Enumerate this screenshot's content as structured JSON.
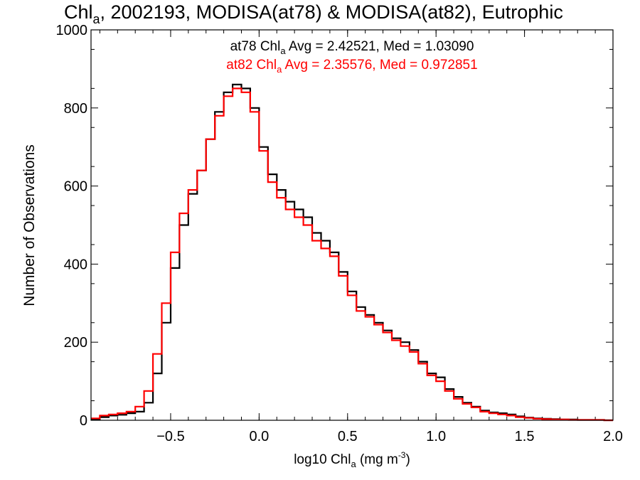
{
  "chart_data": {
    "type": "line",
    "title": "Chl",
    "title_sub": "a",
    "title_rest": ", 2002193, MODISA(at78) & MODISA(at82), Eutrophic",
    "xlabel_pre": "log10 Chl",
    "xlabel_sub": "a",
    "xlabel_mid": " (mg m",
    "xlabel_sup": "-3",
    "xlabel_post": ")",
    "ylabel": "Number of Observations",
    "xlim": [
      -0.95,
      2.0
    ],
    "ylim": [
      0,
      1000
    ],
    "xticks": [
      -0.5,
      0.0,
      0.5,
      1.0,
      1.5,
      2.0
    ],
    "xtick_labels": [
      "−0.5",
      "0.0",
      "0.5",
      "1.0",
      "1.5",
      "2.0"
    ],
    "yticks": [
      0,
      200,
      400,
      600,
      800,
      1000
    ],
    "ytick_labels": [
      "0",
      "200",
      "400",
      "600",
      "800",
      "1000"
    ],
    "plot_style": "step",
    "series": [
      {
        "name": "at78",
        "color": "#000000",
        "stat_pre": "at78 Chl",
        "stat_sub": "a",
        "stat_post": " Avg = 2.42521, Med = 1.03090",
        "x": [
          -0.95,
          -0.9,
          -0.85,
          -0.8,
          -0.75,
          -0.7,
          -0.65,
          -0.6,
          -0.55,
          -0.5,
          -0.45,
          -0.4,
          -0.35,
          -0.3,
          -0.25,
          -0.2,
          -0.15,
          -0.1,
          -0.05,
          0.0,
          0.05,
          0.1,
          0.15,
          0.2,
          0.25,
          0.3,
          0.35,
          0.4,
          0.45,
          0.5,
          0.55,
          0.6,
          0.65,
          0.7,
          0.75,
          0.8,
          0.85,
          0.9,
          0.95,
          1.0,
          1.05,
          1.1,
          1.15,
          1.2,
          1.25,
          1.3,
          1.35,
          1.4,
          1.45,
          1.5,
          1.55,
          1.6,
          1.65,
          1.7,
          1.75,
          1.8,
          1.85,
          1.9,
          1.95,
          2.0
        ],
        "y": [
          3,
          8,
          12,
          14,
          18,
          22,
          45,
          120,
          250,
          390,
          500,
          580,
          640,
          720,
          790,
          840,
          860,
          850,
          800,
          700,
          630,
          590,
          560,
          540,
          520,
          480,
          460,
          430,
          380,
          330,
          290,
          270,
          250,
          230,
          210,
          200,
          180,
          150,
          120,
          110,
          80,
          60,
          45,
          35,
          25,
          20,
          18,
          15,
          10,
          7,
          5,
          4,
          3,
          2,
          2,
          1,
          1,
          1,
          0,
          0
        ]
      },
      {
        "name": "at82",
        "color": "#ff0000",
        "stat_pre": "at82 Chl",
        "stat_sub": "a",
        "stat_post": " Avg = 2.35576, Med = 0.972851",
        "x": [
          -0.95,
          -0.9,
          -0.85,
          -0.8,
          -0.75,
          -0.7,
          -0.65,
          -0.6,
          -0.55,
          -0.5,
          -0.45,
          -0.4,
          -0.35,
          -0.3,
          -0.25,
          -0.2,
          -0.15,
          -0.1,
          -0.05,
          0.0,
          0.05,
          0.1,
          0.15,
          0.2,
          0.25,
          0.3,
          0.35,
          0.4,
          0.45,
          0.5,
          0.55,
          0.6,
          0.65,
          0.7,
          0.75,
          0.8,
          0.85,
          0.9,
          0.95,
          1.0,
          1.05,
          1.1,
          1.15,
          1.2,
          1.25,
          1.3,
          1.35,
          1.4,
          1.45,
          1.5,
          1.55,
          1.6,
          1.65,
          1.7,
          1.75,
          1.8,
          1.85,
          1.9,
          1.95,
          2.0
        ],
        "y": [
          5,
          12,
          15,
          18,
          22,
          35,
          75,
          170,
          300,
          430,
          530,
          590,
          640,
          720,
          780,
          830,
          850,
          840,
          790,
          690,
          610,
          570,
          540,
          520,
          500,
          460,
          440,
          420,
          370,
          320,
          280,
          265,
          245,
          225,
          205,
          190,
          175,
          145,
          115,
          100,
          75,
          55,
          42,
          33,
          22,
          18,
          15,
          12,
          8,
          6,
          4,
          3,
          2,
          2,
          1,
          1,
          1,
          1,
          0,
          0
        ]
      }
    ]
  }
}
